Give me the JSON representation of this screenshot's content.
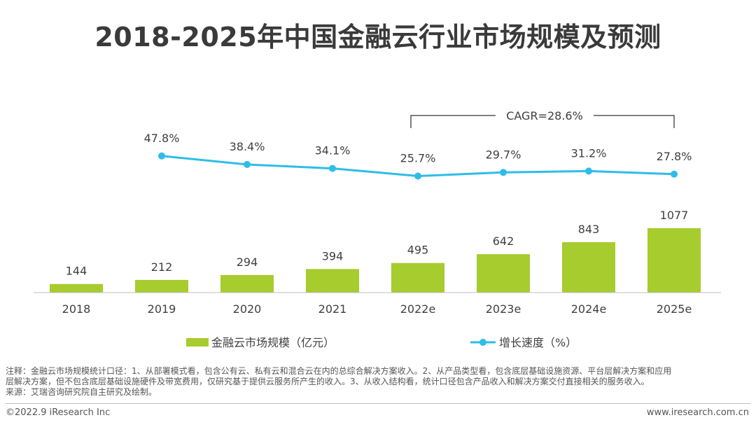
{
  "title": "2018-2025年中国金融云行业市场规模及预测",
  "chart_data": {
    "type": "bar+line",
    "categories": [
      "2018",
      "2019",
      "2020",
      "2021",
      "2022e",
      "2023e",
      "2024e",
      "2025e"
    ],
    "series": [
      {
        "name": "金融云市场规模（亿元）",
        "type": "bar",
        "values": [
          144,
          212,
          294,
          394,
          495,
          642,
          843,
          1077
        ]
      },
      {
        "name": "增长速度（%）",
        "type": "line",
        "values": [
          null,
          47.8,
          38.4,
          34.1,
          25.7,
          29.7,
          31.2,
          27.8
        ],
        "labels": [
          null,
          "47.8%",
          "38.4%",
          "34.1%",
          "25.7%",
          "29.7%",
          "31.2%",
          "27.8%"
        ]
      }
    ],
    "cagr_label": "CAGR=28.6%",
    "colors": {
      "bar": "#a6cc2e",
      "line": "#2ebde8",
      "axis": "#bfbfbf",
      "text": "#404040"
    },
    "legend_position": "bottom"
  },
  "notes": [
    "注释：金融云市场规模统计口径：1、从部署模式看，包含公有云、私有云和混合云在内的总综合解决方案收入。2、从产品类型看，包含底层基础设施资源、平台层解决方案和应用",
    "层解决方案，但不包含底层基础设施硬件及带宽费用，仅研究基于提供云服务所产生的收入。3、从收入结构看，统计口径包含产品收入和解决方案交付直接相关的服务收入。",
    "来源：艾瑞咨询研究院自主研究及绘制。"
  ],
  "copyright": "©2022.9 iResearch Inc",
  "website": "www.iresearch.com.cn"
}
